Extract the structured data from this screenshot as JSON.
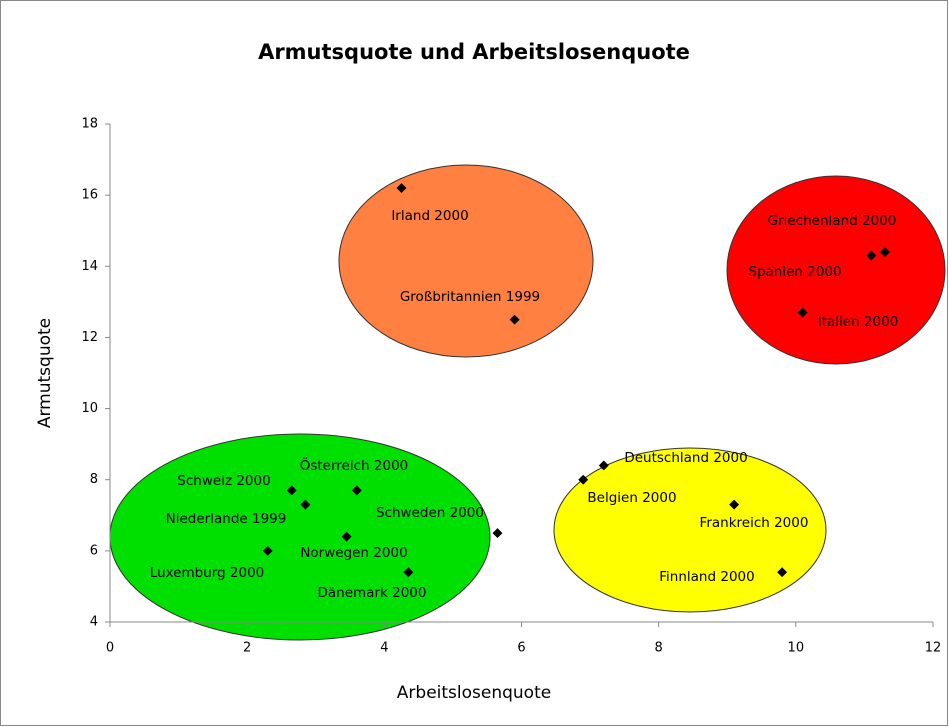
{
  "chart_data": {
    "type": "scatter",
    "title": "Armutsquote und Arbeitslosenquote",
    "x_label": "Arbeitslosenquote",
    "y_label": "Armutsquote",
    "point_labels": [
      "Irland 2000",
      "Großbritannien 1999",
      "Griechenland 2000",
      "Spanien 2000",
      "Italien 2000",
      "Deutschland 2000",
      "Belgien 2000",
      "Frankreich 2000",
      "Finnland 2000",
      "Österreich 2000",
      "Schweiz 2000",
      "Niederlande 1999",
      "Schweden 2000",
      "Norwegen 2000",
      "Luxemburg 2000",
      "Dänemark 2000"
    ],
    "x": [
      4.25,
      5.9,
      11.3,
      11.1,
      10.1,
      7.2,
      6.9,
      9.1,
      9.8,
      3.6,
      2.65,
      2.85,
      5.65,
      3.45,
      2.3,
      4.35
    ],
    "values": [
      16.2,
      12.5,
      14.4,
      14.3,
      12.7,
      8.4,
      8.0,
      7.3,
      5.4,
      7.7,
      7.7,
      7.3,
      6.5,
      6.4,
      6.0,
      5.4
    ],
    "color": "#000000",
    "xlim": [
      0,
      12
    ],
    "xticks": [
      0,
      2,
      4,
      6,
      8,
      10,
      12
    ],
    "ylim": [
      4,
      18
    ],
    "yticks": [
      4,
      6,
      8,
      10,
      12,
      14,
      16,
      18
    ]
  }
}
